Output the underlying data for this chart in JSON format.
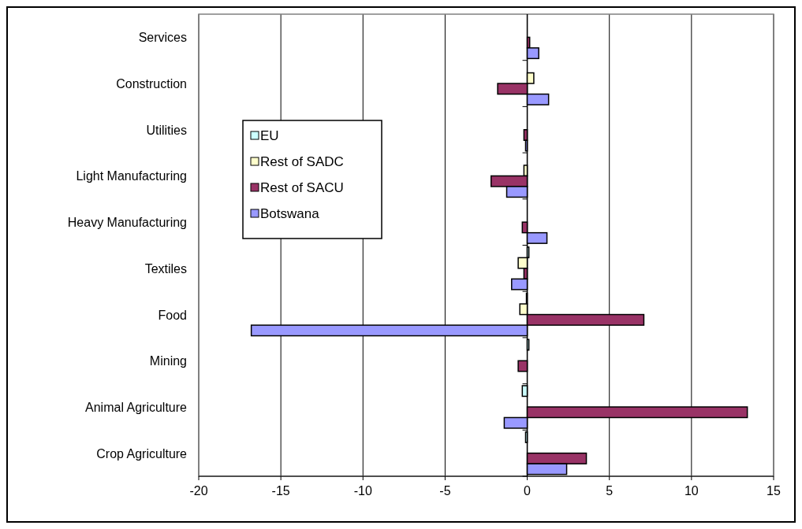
{
  "chart_data": {
    "type": "bar",
    "orientation": "horizontal",
    "categories": [
      "Services",
      "Construction",
      "Utilities",
      "Light Manufacturing",
      "Heavy Manufacturing",
      "Textiles",
      "Food",
      "Mining",
      "Animal Agriculture",
      "Crop Agriculture"
    ],
    "series": [
      {
        "name": "EU",
        "color": "#ccffff",
        "values": [
          0,
          0,
          0,
          0,
          0,
          0.1,
          -0.05,
          0.1,
          -0.3,
          -0.1
        ]
      },
      {
        "name": "Rest of SADC",
        "color": "#ffffcc",
        "values": [
          0,
          0.4,
          0,
          -0.2,
          0,
          -0.55,
          -0.45,
          0,
          0,
          0
        ]
      },
      {
        "name": "Rest of SACU",
        "color": "#993366",
        "values": [
          0.15,
          -1.8,
          -0.2,
          -2.2,
          -0.3,
          -0.2,
          7.1,
          -0.55,
          13.4,
          3.6
        ]
      },
      {
        "name": "Botswana",
        "color": "#9999ff",
        "values": [
          0.7,
          1.3,
          -0.1,
          -1.25,
          1.2,
          -0.95,
          -16.8,
          0,
          -1.4,
          2.4
        ]
      }
    ],
    "xlim": [
      -20,
      15
    ],
    "xticks": [
      -20,
      -15,
      -10,
      -5,
      0,
      5,
      10,
      15
    ],
    "grid": "x",
    "legend": "left"
  }
}
